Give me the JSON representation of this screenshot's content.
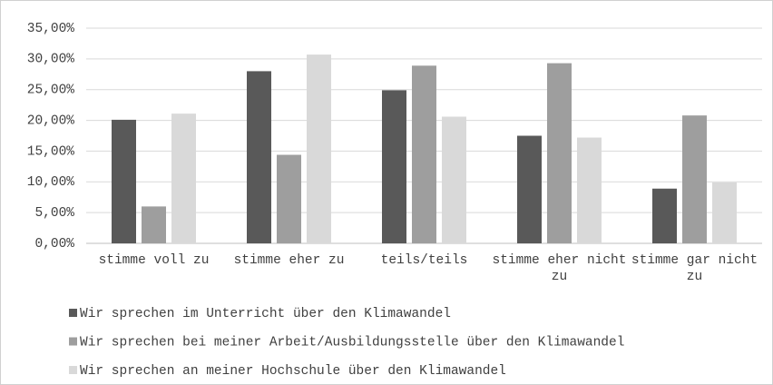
{
  "chart_data": {
    "type": "bar",
    "categories": [
      "stimme voll zu",
      "stimme eher zu",
      "teils/teils",
      "stimme eher nicht zu",
      "stimme gar nicht zu"
    ],
    "series": [
      {
        "name": "Wir sprechen im Unterricht über den Klimawandel",
        "color": "#595959",
        "values": [
          20.1,
          28.0,
          24.9,
          17.5,
          8.9
        ]
      },
      {
        "name": "Wir sprechen bei meiner Arbeit/Ausbildungsstelle über den Klimawandel",
        "color": "#9e9e9e",
        "values": [
          6.0,
          14.4,
          28.9,
          29.3,
          20.8
        ]
      },
      {
        "name": "Wir sprechen an meiner Hochschule über den Klimawandel",
        "color": "#d9d9d9",
        "values": [
          21.1,
          30.7,
          20.6,
          17.2,
          9.9
        ]
      }
    ],
    "ylim": [
      0,
      35
    ],
    "yticks": [
      {
        "value": 0,
        "label": "0,00%"
      },
      {
        "value": 5,
        "label": "5,00%"
      },
      {
        "value": 10,
        "label": "10,00%"
      },
      {
        "value": 15,
        "label": "15,00%"
      },
      {
        "value": 20,
        "label": "20,00%"
      },
      {
        "value": 25,
        "label": "25,00%"
      },
      {
        "value": 30,
        "label": "30,00%"
      },
      {
        "value": 35,
        "label": "35,00%"
      }
    ],
    "grid": true,
    "legend": "bottom"
  }
}
